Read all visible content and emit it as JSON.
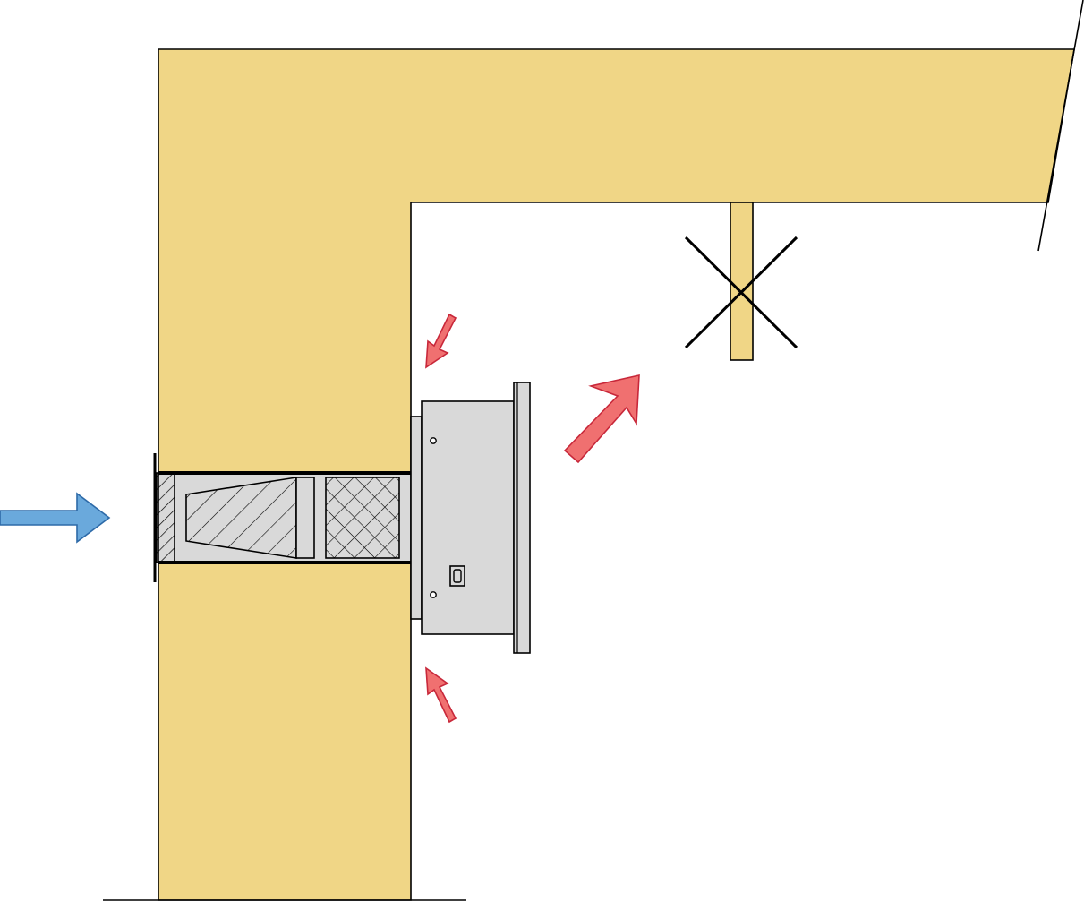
{
  "colors": {
    "wall": "#f0d686",
    "device_body": "#d9d9d9",
    "inlet_arrow": "#6aa9dc",
    "inlet_arrow_stroke": "#2d6aa8",
    "outlet_arrow": "#f07070",
    "outlet_arrow_stroke": "#c8283a",
    "line": "#000000",
    "background": "#ffffff"
  },
  "icons": {
    "outside_air_inlet": "arrow-right-icon",
    "room_air_outlet": "arrow-up-right-icon",
    "room_air_intake_top": "arrow-down-left-icon",
    "room_air_intake_bottom": "arrow-up-left-icon",
    "forbidden_obstruction": "cross-icon"
  }
}
